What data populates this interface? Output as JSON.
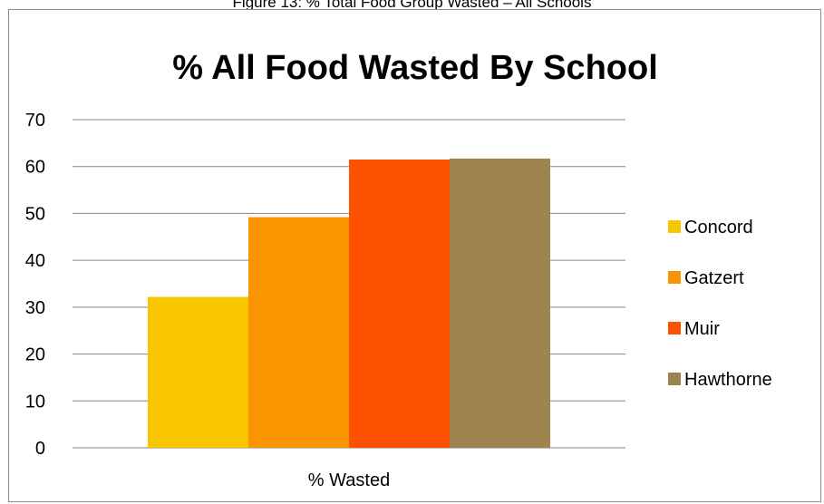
{
  "figure": {
    "caption": "Figure 13: % Total Food Group Wasted – All Schools"
  },
  "chart_data": {
    "type": "bar",
    "title": "% All Food Wasted By School",
    "xlabel": "",
    "ylabel": "",
    "categories": [
      "% Wasted"
    ],
    "ylim": [
      0,
      70
    ],
    "yticks": [
      "0",
      "10",
      "20",
      "30",
      "40",
      "50",
      "60",
      "70"
    ],
    "grid": true,
    "legend_position": "right",
    "series": [
      {
        "name": "Concord",
        "values": [
          32.2
        ],
        "color": "#F8C600"
      },
      {
        "name": "Gatzert",
        "values": [
          49.2
        ],
        "color": "#F89500"
      },
      {
        "name": "Muir",
        "values": [
          61.5
        ],
        "color": "#FF5200"
      },
      {
        "name": "Hawthorne",
        "values": [
          61.7
        ],
        "color": "#A0844F"
      }
    ]
  }
}
